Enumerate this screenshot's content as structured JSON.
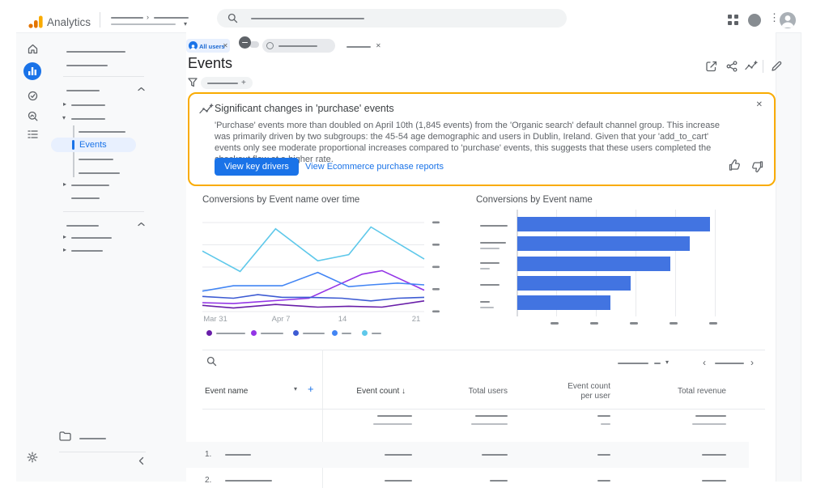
{
  "app": {
    "title": "Analytics"
  },
  "chips": {
    "all_users_label": "All users"
  },
  "page": {
    "title": "Events"
  },
  "insight_card": {
    "title": "Significant changes in 'purchase' events",
    "body": "'Purchase' events more than doubled on April 10th (1,845 events) from the 'Organic search' default channel group. This increase was primarily driven by two subgroups: the 45-54 age demographic and users in Dublin, Ireland. Given that your 'add_to_cart' events only see moderate proportional increases compared to 'purchase' events, this suggests that these users completed the checkout flow at a higher rate.",
    "primary_button_label": "View key drivers",
    "secondary_link_label": "View Ecommerce purchase reports"
  },
  "sidebar": {
    "active_item_label": "Events"
  },
  "chart_data": [
    {
      "type": "line",
      "title": "Conversions by Event name over time",
      "x_ticks": [
        "Mar 31",
        "Apr 7",
        "14",
        "21"
      ],
      "x_tick_positions_pct": [
        6,
        36,
        64,
        97
      ],
      "ylim": [
        0,
        100
      ],
      "grid": "horizontal",
      "legend_position": "bottom",
      "series": [
        {
          "name": "event-series-1",
          "color": "#681da8",
          "points": [
            [
              0,
              7
            ],
            [
              14,
              4
            ],
            [
              33,
              8
            ],
            [
              52,
              5
            ],
            [
              66,
              6
            ],
            [
              81,
              5
            ],
            [
              100,
              12
            ]
          ]
        },
        {
          "name": "event-series-2",
          "color": "#9334e6",
          "points": [
            [
              0,
              10
            ],
            [
              14,
              9
            ],
            [
              48,
              15
            ],
            [
              63,
              32
            ],
            [
              72,
              42
            ],
            [
              81,
              46
            ],
            [
              100,
              24
            ]
          ]
        },
        {
          "name": "event-series-3",
          "color": "#3d5bd3",
          "points": [
            [
              0,
              17
            ],
            [
              14,
              15
            ],
            [
              25,
              19
            ],
            [
              36,
              16
            ],
            [
              48,
              16
            ],
            [
              63,
              15
            ],
            [
              76,
              12
            ],
            [
              88,
              15
            ],
            [
              100,
              16
            ]
          ]
        },
        {
          "name": "event-series-4",
          "color": "#4285f4",
          "points": [
            [
              0,
              23
            ],
            [
              14,
              29
            ],
            [
              36,
              29
            ],
            [
              52,
              44
            ],
            [
              66,
              28
            ],
            [
              76,
              30
            ],
            [
              88,
              32
            ],
            [
              100,
              30
            ]
          ]
        },
        {
          "name": "event-series-5",
          "color": "#5ec8ea",
          "points": [
            [
              0,
              68
            ],
            [
              17,
              45
            ],
            [
              33,
              93
            ],
            [
              52,
              57
            ],
            [
              66,
              64
            ],
            [
              76,
              95
            ],
            [
              100,
              59
            ]
          ]
        }
      ]
    },
    {
      "type": "bar",
      "title": "Conversions by Event name",
      "orientation": "horizontal",
      "values_pct_of_axis": [
        97,
        87,
        77,
        57,
        47
      ],
      "bar_color": "#4274e1",
      "grid": "vertical"
    }
  ],
  "table": {
    "columns": [
      {
        "label": "Event name"
      },
      {
        "label": "Event count",
        "sort_icon": "↓"
      },
      {
        "label": "Total users"
      },
      {
        "label": "Event count per user"
      },
      {
        "label": "Total revenue"
      }
    ],
    "rows": [
      {
        "index": "1."
      },
      {
        "index": "2."
      }
    ]
  }
}
